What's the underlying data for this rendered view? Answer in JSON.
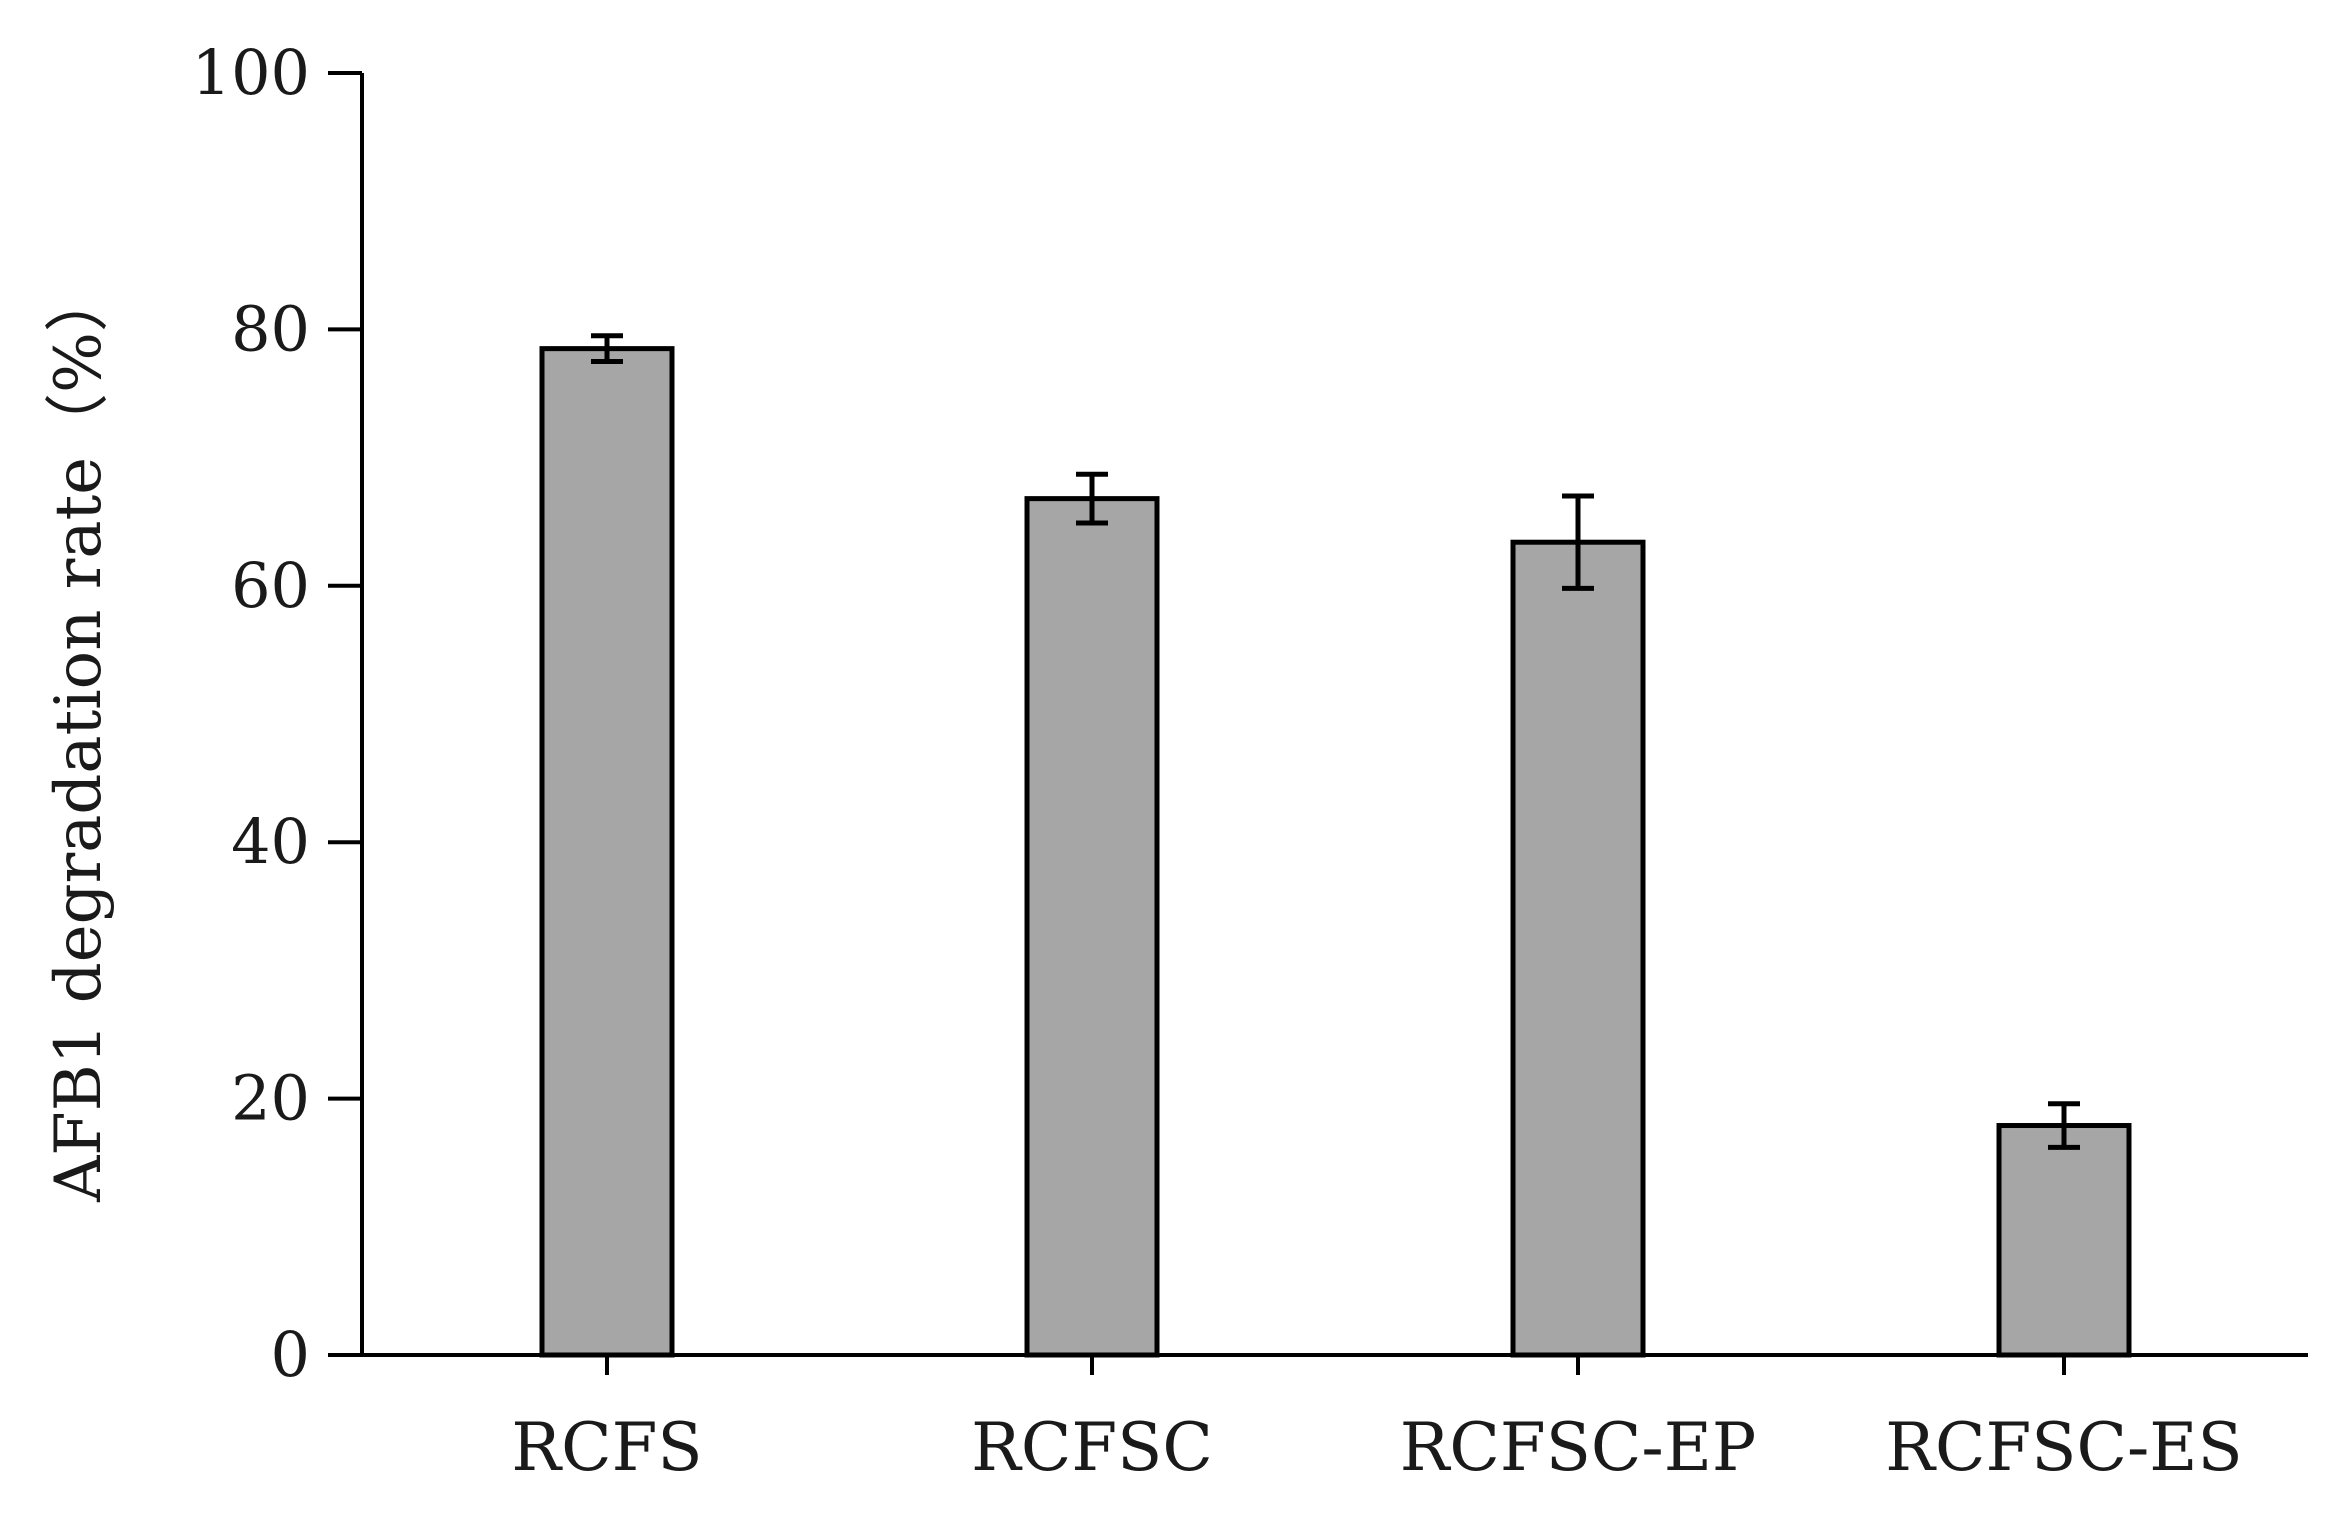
{
  "chart_data": {
    "type": "bar",
    "categories": [
      "RCFS",
      "RCFSC",
      "RCFSC-EP",
      "RCFSC-ES"
    ],
    "series": [
      {
        "values": [
          78.5,
          66.8,
          63.4,
          17.9
        ],
        "errors": [
          1.0,
          1.9,
          3.6,
          1.7
        ]
      }
    ],
    "ylabel": "AFB1 degradation rate（%）",
    "xlabel": "",
    "ylim": [
      0,
      100
    ],
    "yticks": [
      0,
      20,
      40,
      60,
      80,
      100
    ],
    "grid": false,
    "legend": "none",
    "colors": {
      "bar": "#a6a6a6",
      "outline": "#000000"
    }
  }
}
